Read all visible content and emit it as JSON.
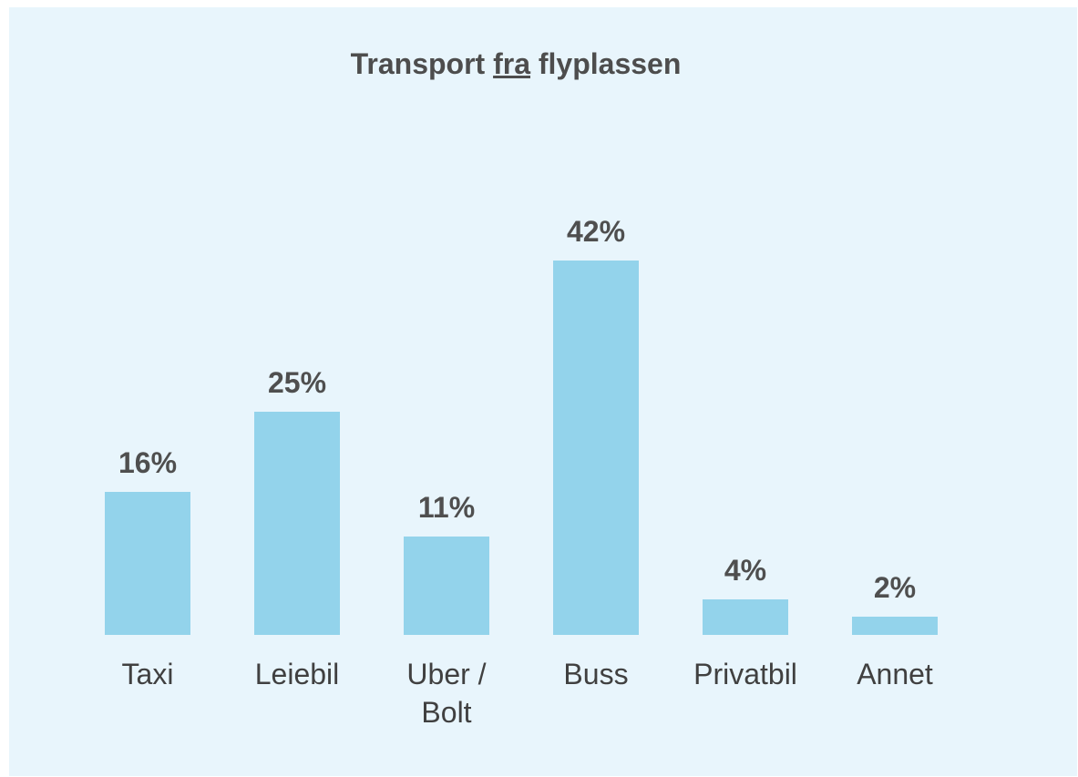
{
  "chart_data": {
    "type": "bar",
    "title": "Transport fra flyplassen",
    "categories": [
      "Taxi",
      "Leiebil",
      "Uber / Bolt",
      "Buss",
      "Privatbil",
      "Annet"
    ],
    "values": [
      16,
      25,
      11,
      42,
      4,
      2
    ],
    "value_labels": [
      "16%",
      "25%",
      "11%",
      "42%",
      "4%",
      "2%"
    ],
    "color": "#93d3eb"
  }
}
